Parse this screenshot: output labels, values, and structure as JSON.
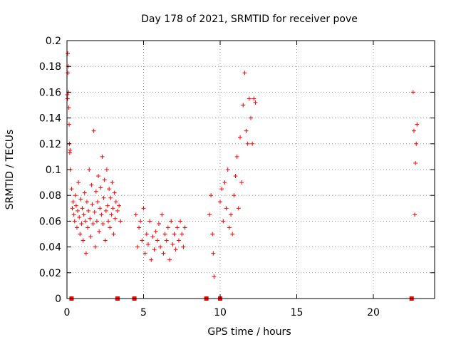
{
  "chart_data": {
    "type": "scatter",
    "title": "Day 178 of 2021, SRMTID for receiver pove",
    "xlabel": "GPS time / hours",
    "ylabel": "SRMTID / TECUs",
    "xlim": [
      0,
      24
    ],
    "ylim": [
      0,
      0.2
    ],
    "x_ticks": [
      {
        "value": 0,
        "label": "0"
      },
      {
        "value": 5,
        "label": "5"
      },
      {
        "value": 10,
        "label": "10"
      },
      {
        "value": 15,
        "label": "15"
      },
      {
        "value": 20,
        "label": "20"
      }
    ],
    "y_ticks": [
      {
        "value": 0,
        "label": "0"
      },
      {
        "value": 0.02,
        "label": "0.02"
      },
      {
        "value": 0.04,
        "label": "0.04"
      },
      {
        "value": 0.06,
        "label": "0.06"
      },
      {
        "value": 0.08,
        "label": "0.08"
      },
      {
        "value": 0.1,
        "label": "0.1"
      },
      {
        "value": 0.12,
        "label": "0.12"
      },
      {
        "value": 0.14,
        "label": "0.14"
      },
      {
        "value": 0.16,
        "label": "0.16"
      },
      {
        "value": 0.18,
        "label": "0.18"
      },
      {
        "value": 0.2,
        "label": "0.2"
      }
    ],
    "grid": true,
    "marker": "+",
    "color": "#ff0000",
    "gap_markers_x": [
      0.3,
      3.3,
      4.4,
      9.1,
      10.0,
      22.5
    ],
    "series": [
      {
        "name": "SRMTID",
        "points": [
          [
            0.02,
            0.158
          ],
          [
            0.04,
            0.155
          ],
          [
            0.05,
            0.19
          ],
          [
            0.06,
            0.175
          ],
          [
            0.08,
            0.18
          ],
          [
            0.1,
            0.16
          ],
          [
            0.12,
            0.148
          ],
          [
            0.14,
            0.135
          ],
          [
            0.16,
            0.12
          ],
          [
            0.18,
            0.113
          ],
          [
            0.2,
            0.115
          ],
          [
            0.22,
            0.1
          ],
          [
            0.3,
            0.085
          ],
          [
            0.35,
            0.07
          ],
          [
            0.4,
            0.075
          ],
          [
            0.45,
            0.065
          ],
          [
            0.5,
            0.06
          ],
          [
            0.55,
            0.08
          ],
          [
            0.6,
            0.072
          ],
          [
            0.65,
            0.055
          ],
          [
            0.7,
            0.068
          ],
          [
            0.75,
            0.09
          ],
          [
            0.8,
            0.063
          ],
          [
            0.85,
            0.05
          ],
          [
            0.9,
            0.077
          ],
          [
            0.95,
            0.058
          ],
          [
            1.0,
            0.07
          ],
          [
            1.05,
            0.045
          ],
          [
            1.1,
            0.065
          ],
          [
            1.15,
            0.082
          ],
          [
            1.2,
            0.06
          ],
          [
            1.25,
            0.035
          ],
          [
            1.3,
            0.075
          ],
          [
            1.35,
            0.055
          ],
          [
            1.4,
            0.068
          ],
          [
            1.45,
            0.1
          ],
          [
            1.5,
            0.062
          ],
          [
            1.55,
            0.048
          ],
          [
            1.6,
            0.088
          ],
          [
            1.65,
            0.073
          ],
          [
            1.7,
            0.058
          ],
          [
            1.75,
            0.13
          ],
          [
            1.8,
            0.067
          ],
          [
            1.85,
            0.04
          ],
          [
            1.9,
            0.083
          ],
          [
            1.95,
            0.06
          ],
          [
            2.0,
            0.075
          ],
          [
            2.05,
            0.095
          ],
          [
            2.1,
            0.052
          ],
          [
            2.15,
            0.07
          ],
          [
            2.2,
            0.086
          ],
          [
            2.25,
            0.065
          ],
          [
            2.3,
            0.11
          ],
          [
            2.35,
            0.058
          ],
          [
            2.4,
            0.078
          ],
          [
            2.45,
            0.092
          ],
          [
            2.5,
            0.045
          ],
          [
            2.55,
            0.068
          ],
          [
            2.6,
            0.1
          ],
          [
            2.65,
            0.072
          ],
          [
            2.7,
            0.06
          ],
          [
            2.75,
            0.085
          ],
          [
            2.8,
            0.055
          ],
          [
            2.85,
            0.078
          ],
          [
            2.9,
            0.065
          ],
          [
            2.95,
            0.09
          ],
          [
            3.0,
            0.07
          ],
          [
            3.05,
            0.05
          ],
          [
            3.1,
            0.082
          ],
          [
            3.15,
            0.062
          ],
          [
            3.2,
            0.075
          ],
          [
            3.3,
            0.068
          ],
          [
            3.4,
            0.072
          ],
          [
            3.5,
            0.06
          ],
          [
            4.5,
            0.065
          ],
          [
            4.6,
            0.04
          ],
          [
            4.7,
            0.055
          ],
          [
            4.8,
            0.06
          ],
          [
            4.9,
            0.045
          ],
          [
            5.0,
            0.07
          ],
          [
            5.1,
            0.035
          ],
          [
            5.2,
            0.05
          ],
          [
            5.3,
            0.042
          ],
          [
            5.4,
            0.06
          ],
          [
            5.5,
            0.03
          ],
          [
            5.6,
            0.048
          ],
          [
            5.7,
            0.038
          ],
          [
            5.8,
            0.052
          ],
          [
            5.9,
            0.045
          ],
          [
            6.0,
            0.058
          ],
          [
            6.1,
            0.04
          ],
          [
            6.2,
            0.065
          ],
          [
            6.3,
            0.035
          ],
          [
            6.4,
            0.05
          ],
          [
            6.5,
            0.045
          ],
          [
            6.6,
            0.055
          ],
          [
            6.7,
            0.03
          ],
          [
            6.8,
            0.06
          ],
          [
            6.9,
            0.042
          ],
          [
            7.0,
            0.05
          ],
          [
            7.1,
            0.038
          ],
          [
            7.2,
            0.055
          ],
          [
            7.3,
            0.045
          ],
          [
            7.4,
            0.06
          ],
          [
            7.5,
            0.05
          ],
          [
            7.6,
            0.04
          ],
          [
            7.7,
            0.055
          ],
          [
            9.3,
            0.065
          ],
          [
            9.4,
            0.08
          ],
          [
            9.5,
            0.05
          ],
          [
            9.55,
            0.035
          ],
          [
            9.6,
            0.017
          ],
          [
            10.0,
            0.075
          ],
          [
            10.1,
            0.085
          ],
          [
            10.2,
            0.06
          ],
          [
            10.3,
            0.09
          ],
          [
            10.4,
            0.07
          ],
          [
            10.5,
            0.1
          ],
          [
            10.6,
            0.055
          ],
          [
            10.7,
            0.065
          ],
          [
            10.8,
            0.05
          ],
          [
            10.9,
            0.08
          ],
          [
            11.0,
            0.095
          ],
          [
            11.1,
            0.11
          ],
          [
            11.2,
            0.07
          ],
          [
            11.3,
            0.125
          ],
          [
            11.4,
            0.09
          ],
          [
            11.5,
            0.15
          ],
          [
            11.6,
            0.175
          ],
          [
            11.7,
            0.13
          ],
          [
            11.8,
            0.12
          ],
          [
            11.9,
            0.155
          ],
          [
            12.0,
            0.14
          ],
          [
            12.1,
            0.12
          ],
          [
            12.2,
            0.155
          ],
          [
            12.3,
            0.152
          ],
          [
            22.6,
            0.16
          ],
          [
            22.65,
            0.13
          ],
          [
            22.7,
            0.065
          ],
          [
            22.75,
            0.105
          ],
          [
            22.8,
            0.12
          ],
          [
            22.85,
            0.135
          ]
        ]
      }
    ]
  }
}
